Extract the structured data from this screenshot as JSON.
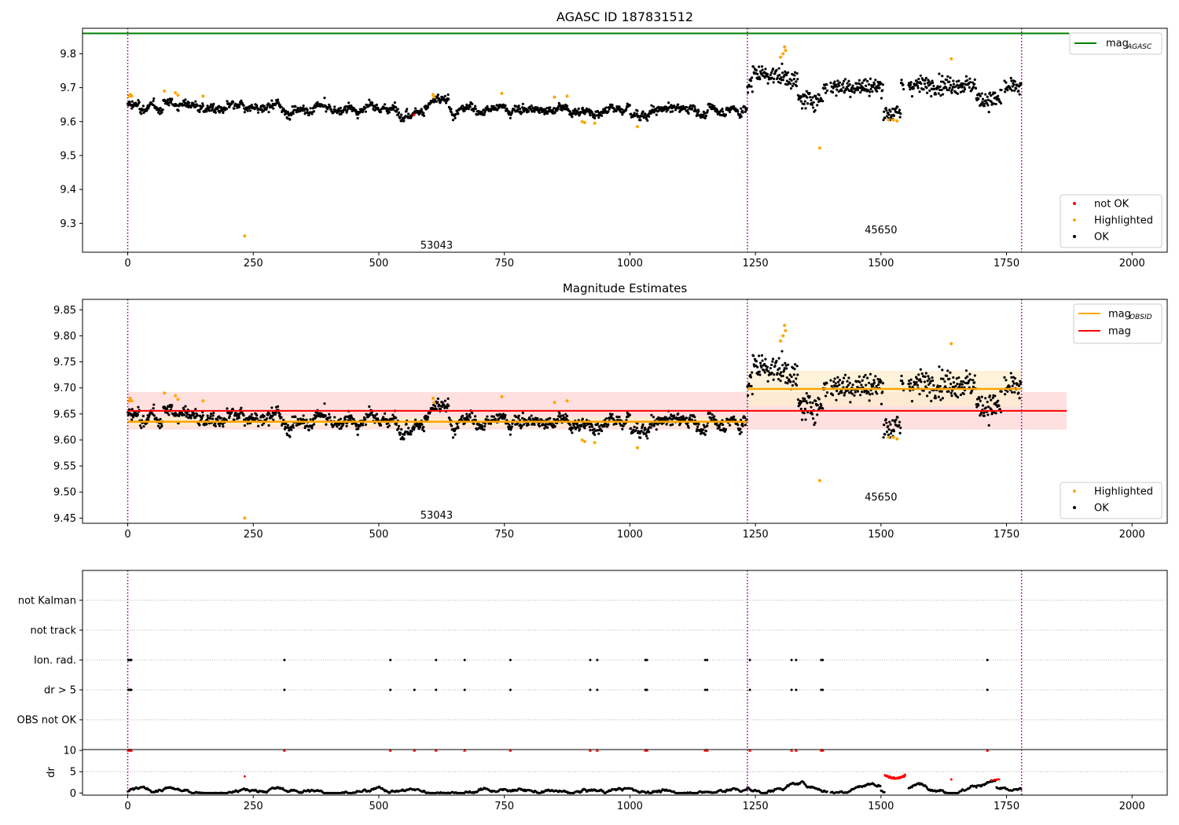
{
  "figure": {
    "title": "AGASC ID 187831512",
    "colors": {
      "ok": "#000000",
      "highlighted": "#ffa500",
      "not_ok": "#ff0000",
      "agasc": "#008000",
      "obsid_mag": "#ffa500",
      "mag": "#ff0000",
      "boundary": "#800080",
      "band_mag": "#ffcccc",
      "band_obsid": "#fdeccc"
    }
  },
  "chart_data": [
    {
      "type": "scatter",
      "panel": "top",
      "title": "AGASC ID 187831512",
      "xlim": [
        -90,
        2070
      ],
      "ylim": [
        9.215,
        9.875
      ],
      "xticks": [
        0,
        250,
        500,
        750,
        1000,
        1250,
        1500,
        1750,
        2000
      ],
      "yticks": [
        9.3,
        9.4,
        9.5,
        9.6,
        9.7,
        9.8
      ],
      "obsid_boundaries": [
        0,
        1234,
        1780
      ],
      "obsids": [
        {
          "label": "53043",
          "x_text": 615,
          "y_text": 9.235
        },
        {
          "label": "45650",
          "x_text": 1500,
          "y_text": 9.28
        }
      ],
      "mag_agasc": 9.86,
      "segments": [
        {
          "x": [
            0,
            1234
          ],
          "mean": 9.636,
          "std": 0.013
        },
        {
          "x": [
            1234,
            1780
          ],
          "mean": 9.698,
          "std": 0.028
        }
      ],
      "series_points": {
        "highlighted": [
          [
            3,
            9.675
          ],
          [
            5,
            9.68
          ],
          [
            8,
            9.675
          ],
          [
            73,
            9.69
          ],
          [
            95,
            9.685
          ],
          [
            100,
            9.678
          ],
          [
            150,
            9.675
          ],
          [
            233,
            9.263
          ],
          [
            608,
            9.68
          ],
          [
            610,
            9.672
          ],
          [
            745,
            9.683
          ],
          [
            850,
            9.672
          ],
          [
            875,
            9.675
          ],
          [
            905,
            9.6
          ],
          [
            910,
            9.597
          ],
          [
            930,
            9.595
          ],
          [
            1015,
            9.585
          ],
          [
            1300,
            9.79
          ],
          [
            1305,
            9.8
          ],
          [
            1308,
            9.82
          ],
          [
            1310,
            9.81
          ],
          [
            1378,
            9.522
          ],
          [
            1515,
            9.605
          ],
          [
            1525,
            9.605
          ],
          [
            1532,
            9.602
          ],
          [
            1640,
            9.785
          ]
        ],
        "not_ok": [
          [
            570,
            9.62
          ]
        ]
      },
      "legend": [
        {
          "label": "not OK",
          "kind": "point",
          "color_key": "not_ok"
        },
        {
          "label": "Highlighted",
          "kind": "point",
          "color_key": "highlighted"
        },
        {
          "label": "OK",
          "kind": "point",
          "color_key": "ok"
        }
      ],
      "legend_top": {
        "label": "mag",
        "sub": "AGASC",
        "color_key": "agasc"
      }
    },
    {
      "type": "scatter",
      "panel": "middle",
      "title": "Magnitude Estimates",
      "xlim": [
        -90,
        2070
      ],
      "ylim": [
        9.44,
        9.87
      ],
      "xticks": [
        0,
        250,
        500,
        750,
        1000,
        1250,
        1500,
        1750,
        2000
      ],
      "yticks": [
        9.45,
        9.5,
        9.55,
        9.6,
        9.65,
        9.7,
        9.75,
        9.8,
        9.85
      ],
      "obsid_boundaries": [
        0,
        1234,
        1780
      ],
      "obsids": [
        {
          "label": "53043",
          "x_text": 615,
          "y_text": 9.455
        },
        {
          "label": "45650",
          "x_text": 1500,
          "y_text": 9.49
        }
      ],
      "mag": 9.656,
      "mag_band": [
        9.62,
        9.692
      ],
      "mag_x": [
        0,
        1870
      ],
      "obsid_mags": [
        {
          "x": [
            0,
            1234
          ],
          "mag": 9.635,
          "band": [
            9.625,
            9.645
          ]
        },
        {
          "x": [
            1234,
            1780
          ],
          "mag": 9.698,
          "band": [
            9.665,
            9.733
          ]
        }
      ],
      "segments": [
        {
          "x": [
            0,
            1234
          ],
          "mean": 9.636,
          "std": 0.013
        },
        {
          "x": [
            1234,
            1780
          ],
          "mean": 9.698,
          "std": 0.028
        }
      ],
      "series_points": {
        "highlighted": [
          [
            3,
            9.675
          ],
          [
            5,
            9.68
          ],
          [
            8,
            9.675
          ],
          [
            73,
            9.69
          ],
          [
            95,
            9.685
          ],
          [
            100,
            9.678
          ],
          [
            150,
            9.675
          ],
          [
            233,
            9.45
          ],
          [
            608,
            9.68
          ],
          [
            610,
            9.672
          ],
          [
            745,
            9.683
          ],
          [
            850,
            9.672
          ],
          [
            875,
            9.675
          ],
          [
            905,
            9.6
          ],
          [
            910,
            9.597
          ],
          [
            930,
            9.595
          ],
          [
            1015,
            9.585
          ],
          [
            1300,
            9.79
          ],
          [
            1305,
            9.8
          ],
          [
            1308,
            9.82
          ],
          [
            1310,
            9.81
          ],
          [
            1378,
            9.522
          ],
          [
            1515,
            9.605
          ],
          [
            1525,
            9.605
          ],
          [
            1532,
            9.602
          ],
          [
            1640,
            9.785
          ]
        ]
      },
      "legend": [
        {
          "label": "Highlighted",
          "kind": "point",
          "color_key": "highlighted"
        },
        {
          "label": "OK",
          "kind": "point",
          "color_key": "ok"
        }
      ],
      "legend_top": [
        {
          "label": "mag",
          "sub": "OBSID",
          "color_key": "obsid_mag"
        },
        {
          "label": "mag",
          "sub": "",
          "color_key": "mag"
        }
      ]
    },
    {
      "type": "scatter",
      "panel": "flags",
      "xlim": [
        -90,
        2070
      ],
      "categories": [
        "not Kalman",
        "not track",
        "Ion. rad.",
        "dr > 5",
        "OBS not OK"
      ],
      "obsid_boundaries": [
        0,
        1234,
        1780
      ],
      "flag_times": {
        "Ion. rad.": [
          1,
          3,
          5,
          7,
          312,
          523,
          614,
          671,
          762,
          921,
          935,
          1031,
          1034,
          1150,
          1154,
          1239,
          1322,
          1331,
          1381,
          1384,
          1712
        ],
        "dr > 5": [
          1,
          3,
          5,
          7,
          312,
          523,
          571,
          614,
          671,
          762,
          921,
          935,
          1031,
          1034,
          1150,
          1154,
          1239,
          1322,
          1331,
          1381,
          1384,
          1712
        ]
      }
    },
    {
      "type": "scatter",
      "panel": "dr",
      "ylabel": "dr",
      "xlim": [
        -90,
        2070
      ],
      "ylim": [
        -0.5,
        10.2
      ],
      "xticks": [
        0,
        250,
        500,
        750,
        1000,
        1250,
        1500,
        1750,
        2000
      ],
      "yticks": [
        0,
        5,
        10
      ],
      "obsid_boundaries": [
        0,
        1234,
        1780
      ],
      "capped_times": [
        1,
        3,
        5,
        7,
        312,
        523,
        571,
        614,
        671,
        762,
        921,
        935,
        1031,
        1034,
        1150,
        1154,
        1239,
        1322,
        1331,
        1381,
        1384,
        1712
      ],
      "high_dr": {
        "x": [
          1508,
          1548
        ],
        "y": 3.5
      },
      "red_points": [
        [
          233,
          3.9
        ],
        [
          1640,
          3.2
        ],
        [
          1720,
          3.0
        ],
        [
          1726,
          3.1
        ],
        [
          1731,
          3.2
        ],
        [
          1735,
          3.2
        ]
      ]
    }
  ]
}
